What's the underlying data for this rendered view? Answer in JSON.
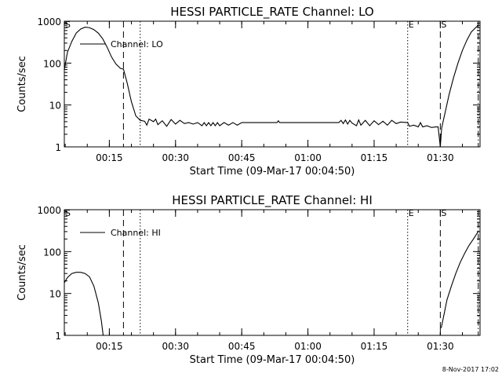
{
  "footer": {
    "timestamp": "8-Nov-2017 17:02"
  },
  "chart_data": [
    {
      "type": "line",
      "title": "HESSI PARTICLE_RATE Channel: LO",
      "xlabel": "Start Time (09-Mar-17 00:04:50)",
      "ylabel": "Counts/sec",
      "yscale": "log",
      "ylim": [
        1,
        1000
      ],
      "xlim_minutes": [
        4.8,
        99
      ],
      "x_ticks": [
        {
          "t": 15,
          "label": "00:15"
        },
        {
          "t": 30,
          "label": "00:30"
        },
        {
          "t": 45,
          "label": "00:45"
        },
        {
          "t": 60,
          "label": "01:00"
        },
        {
          "t": 75,
          "label": "01:15"
        },
        {
          "t": 90,
          "label": "01:30"
        }
      ],
      "y_ticks": [
        {
          "v": 1,
          "label": "1"
        },
        {
          "v": 10,
          "label": "10"
        },
        {
          "v": 100,
          "label": "100"
        },
        {
          "v": 1000,
          "label": "1000"
        }
      ],
      "markers": [
        {
          "t": 4.8,
          "style": "solid",
          "label": "S"
        },
        {
          "t": 18.2,
          "style": "dashed",
          "label": ""
        },
        {
          "t": 22,
          "style": "dotted",
          "label": ""
        },
        {
          "t": 82.6,
          "style": "dotted",
          "label": "E"
        },
        {
          "t": 90,
          "style": "dashed",
          "label": "S"
        },
        {
          "t": 98.6,
          "style": "dashdot",
          "label": ""
        }
      ],
      "legend": {
        "position": "top-left",
        "label": "Channel: LO"
      },
      "series": [
        {
          "name": "Channel: LO",
          "points": [
            [
              4.8,
              70
            ],
            [
              5.5,
              180
            ],
            [
              6.5,
              330
            ],
            [
              7.5,
              520
            ],
            [
              8.5,
              650
            ],
            [
              9.5,
              720
            ],
            [
              10.5,
              700
            ],
            [
              11.5,
              630
            ],
            [
              12.5,
              520
            ],
            [
              13.5,
              380
            ],
            [
              14.5,
              240
            ],
            [
              15.5,
              140
            ],
            [
              16.5,
              95
            ],
            [
              17.5,
              75
            ],
            [
              18.2,
              72
            ],
            [
              19.0,
              35
            ],
            [
              20.0,
              12
            ],
            [
              21.0,
              5.5
            ],
            [
              22.0,
              4.3
            ],
            [
              23,
              4.1
            ],
            [
              23.5,
              3.3
            ],
            [
              24,
              4.6
            ],
            [
              25,
              4.0
            ],
            [
              25.5,
              4.6
            ],
            [
              26,
              3.4
            ],
            [
              27,
              4.2
            ],
            [
              28,
              3.1
            ],
            [
              29,
              4.5
            ],
            [
              30,
              3.5
            ],
            [
              31,
              4.3
            ],
            [
              32,
              3.6
            ],
            [
              33,
              3.8
            ],
            [
              34,
              3.5
            ],
            [
              35,
              3.8
            ],
            [
              36,
              3.2
            ],
            [
              36.5,
              3.8
            ],
            [
              37,
              3.2
            ],
            [
              37.5,
              3.8
            ],
            [
              38,
              3.2
            ],
            [
              38.5,
              3.8
            ],
            [
              39,
              3.2
            ],
            [
              39.5,
              3.8
            ],
            [
              40,
              3.2
            ],
            [
              41,
              3.8
            ],
            [
              42,
              3.3
            ],
            [
              43,
              3.8
            ],
            [
              44,
              3.3
            ],
            [
              45,
              3.8
            ],
            [
              46,
              3.8
            ],
            [
              53,
              3.8
            ],
            [
              53.3,
              4.2
            ],
            [
              53.6,
              3.8
            ],
            [
              60,
              3.8
            ],
            [
              67,
              3.8
            ],
            [
              67.5,
              4.3
            ],
            [
              68,
              3.6
            ],
            [
              68.5,
              4.4
            ],
            [
              69,
              3.5
            ],
            [
              69.5,
              4.3
            ],
            [
              70,
              3.7
            ],
            [
              71,
              3.2
            ],
            [
              71.5,
              4.4
            ],
            [
              72,
              3.3
            ],
            [
              73,
              4.3
            ],
            [
              74,
              3.2
            ],
            [
              75,
              4.2
            ],
            [
              76,
              3.4
            ],
            [
              77,
              4.1
            ],
            [
              78,
              3.3
            ],
            [
              79,
              4.3
            ],
            [
              80,
              3.6
            ],
            [
              81,
              3.9
            ],
            [
              82.6,
              3.8
            ],
            [
              83,
              3.1
            ],
            [
              84,
              3.3
            ],
            [
              85,
              3.0
            ],
            [
              85.5,
              3.8
            ],
            [
              86,
              3.0
            ],
            [
              87,
              3.2
            ],
            [
              88,
              2.9
            ],
            [
              89,
              3.0
            ],
            [
              89.5,
              3.0
            ],
            [
              90,
              1.0
            ],
            [
              90.3,
              2.8
            ],
            [
              91,
              6
            ],
            [
              92,
              18
            ],
            [
              93,
              45
            ],
            [
              94,
              100
            ],
            [
              95,
              200
            ],
            [
              96,
              350
            ],
            [
              97,
              550
            ],
            [
              98,
              700
            ],
            [
              98.6,
              800
            ]
          ]
        }
      ]
    },
    {
      "type": "line",
      "title": "HESSI PARTICLE_RATE Channel: HI",
      "xlabel": "Start Time (09-Mar-17 00:04:50)",
      "ylabel": "Counts/sec",
      "yscale": "log",
      "ylim": [
        1,
        1000
      ],
      "xlim_minutes": [
        4.8,
        99
      ],
      "x_ticks": [
        {
          "t": 15,
          "label": "00:15"
        },
        {
          "t": 30,
          "label": "00:30"
        },
        {
          "t": 45,
          "label": "00:45"
        },
        {
          "t": 60,
          "label": "01:00"
        },
        {
          "t": 75,
          "label": "01:15"
        },
        {
          "t": 90,
          "label": "01:30"
        }
      ],
      "y_ticks": [
        {
          "v": 1,
          "label": "1"
        },
        {
          "v": 10,
          "label": "10"
        },
        {
          "v": 100,
          "label": "100"
        },
        {
          "v": 1000,
          "label": "1000"
        }
      ],
      "markers": [
        {
          "t": 4.8,
          "style": "solid",
          "label": "S"
        },
        {
          "t": 18.2,
          "style": "dashed",
          "label": ""
        },
        {
          "t": 22,
          "style": "dotted",
          "label": ""
        },
        {
          "t": 82.6,
          "style": "dotted",
          "label": "E"
        },
        {
          "t": 90,
          "style": "dashed",
          "label": "S"
        },
        {
          "t": 98.6,
          "style": "dashdot",
          "label": ""
        }
      ],
      "legend": {
        "position": "top-left",
        "label": "Channel: HI"
      },
      "series": [
        {
          "name": "Channel: HI",
          "points": [
            [
              4.8,
              18
            ],
            [
              5.5,
              24
            ],
            [
              6.5,
              30
            ],
            [
              7.5,
              32
            ],
            [
              8.5,
              32
            ],
            [
              9.5,
              30
            ],
            [
              10.5,
              25
            ],
            [
              11.5,
              15
            ],
            [
              12.5,
              6
            ],
            [
              13.2,
              2.2
            ],
            [
              13.6,
              1.0
            ]
          ]
        },
        {
          "name": "",
          "points": [
            [
              90.2,
              1.5
            ],
            [
              90.8,
              3
            ],
            [
              91.5,
              7
            ],
            [
              92.5,
              15
            ],
            [
              93.5,
              30
            ],
            [
              94.5,
              55
            ],
            [
              95.5,
              90
            ],
            [
              96.5,
              140
            ],
            [
              97.5,
              200
            ],
            [
              98.2,
              260
            ],
            [
              98.6,
              300
            ]
          ]
        }
      ]
    }
  ]
}
